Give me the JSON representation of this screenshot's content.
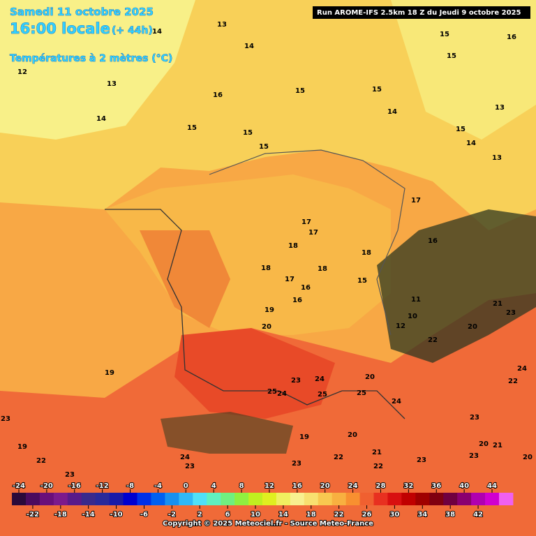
{
  "header": {
    "date": "Samedi 11 octobre 2025",
    "time": "16:00 locale",
    "lead": "(+ 44h)",
    "field": "Températures à 2 mètres (°C)",
    "run": "Run AROME-IFS 2.5km 18 Z du Jeudi 9 octobre 2025"
  },
  "footer": "Copyright © 2025 Meteociel.fr - Source Meteo-France",
  "contour_labels": [
    14,
    13,
    14,
    16,
    15,
    15,
    12,
    13,
    16,
    15,
    15,
    14,
    13,
    14,
    15,
    15,
    15,
    15,
    14,
    13,
    17,
    17,
    17,
    18,
    18,
    16,
    18,
    18,
    17,
    16,
    15,
    16,
    19,
    11,
    20,
    12,
    10,
    20,
    23,
    21,
    19,
    25,
    24,
    25,
    25,
    20,
    24,
    20,
    22,
    21,
    23,
    22,
    23,
    20,
    21,
    23,
    20,
    19,
    22,
    23,
    19,
    24,
    23,
    23,
    23,
    24,
    22,
    22,
    23,
    24
  ],
  "colorbar": {
    "ticks": [
      -24,
      -22,
      -20,
      -18,
      -16,
      -14,
      -12,
      -10,
      -8,
      -6,
      -4,
      -2,
      0,
      2,
      4,
      6,
      8,
      10,
      12,
      14,
      16,
      18,
      20,
      22,
      24,
      26,
      28,
      30,
      32,
      34,
      36,
      38,
      40,
      42,
      44
    ],
    "colors": [
      "#2a0a3a",
      "#4b0b5e",
      "#6a0f7a",
      "#7c1a8c",
      "#5a1a8a",
      "#3a2a8c",
      "#2a2a9a",
      "#1a1aa8",
      "#0000d0",
      "#0030e8",
      "#0060f0",
      "#1890f0",
      "#30b8f8",
      "#50e0f8",
      "#60f0c0",
      "#70f080",
      "#90f040",
      "#c0f020",
      "#e0f020",
      "#f0f060",
      "#f8f090",
      "#f8e070",
      "#f8c850",
      "#f8b040",
      "#f89030",
      "#f06030",
      "#e83020",
      "#d81010",
      "#c00000",
      "#a00000",
      "#800010",
      "#700040",
      "#8a0070",
      "#b000b0",
      "#d000d0",
      "#f060f0"
    ]
  }
}
